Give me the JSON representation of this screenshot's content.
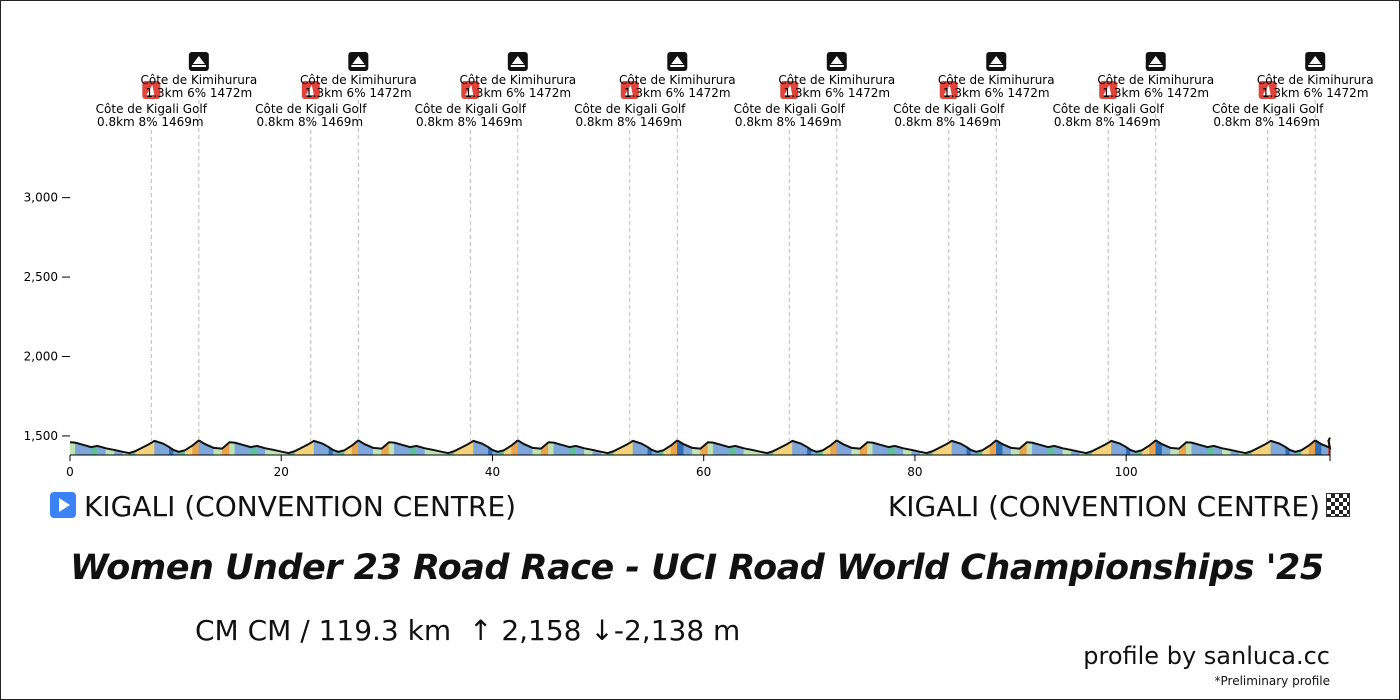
{
  "chart_data": {
    "type": "area",
    "title": "Women Under 23 Road Race - UCI Road World Championships '25",
    "x_ticks": [
      0,
      20,
      40,
      60,
      80,
      100
    ],
    "y_ticks": [
      1500,
      2000,
      2500,
      3000
    ],
    "y_tick_labels": [
      "1,500",
      "2,000",
      "2,500",
      "3,000"
    ],
    "xlim": [
      0,
      119.3
    ],
    "ylim": [
      1380,
      3300
    ],
    "lap_profile": {
      "lap_length_km": 15.1,
      "x": [
        0,
        0.5,
        1.2,
        2.0,
        2.6,
        3.4,
        4.2,
        5.0,
        5.6,
        6.2,
        6.8,
        7.4,
        8.0,
        8.8,
        9.4,
        9.8,
        10.3,
        10.9,
        11.6,
        12.2,
        12.8,
        13.6,
        14.4,
        15.1
      ],
      "y": [
        1460,
        1458,
        1445,
        1430,
        1437,
        1422,
        1412,
        1400,
        1392,
        1405,
        1425,
        1445,
        1469,
        1452,
        1430,
        1412,
        1400,
        1410,
        1440,
        1472,
        1448,
        1425,
        1420,
        1460
      ]
    },
    "finish_elevation": 1490,
    "climbs": [
      {
        "name": "Côte de Kigali Golf",
        "stats": "0.8km 8% 1469m",
        "km": [
          7.7,
          22.8,
          37.9,
          53.0,
          68.1,
          83.2,
          98.3,
          113.4
        ]
      },
      {
        "name": "Côte de Kimihurura",
        "stats": "1.3km 6% 1472m",
        "km": [
          12.2,
          27.3,
          42.4,
          57.5,
          72.6,
          87.7,
          102.8,
          117.9
        ]
      }
    ],
    "gradient_colors": {
      "descent_steep": "#2f6db5",
      "descent": "#7ea6d9",
      "flat": "#bfe3b4",
      "gentle": "#5fbf9a",
      "moderate": "#f2d27a",
      "steep": "#e8a34c",
      "very_steep": "#d9453b"
    }
  },
  "start": {
    "place": "KIGALI (CONVENTION CENTRE)"
  },
  "finish": {
    "place": "KIGALI (CONVENTION CENTRE)"
  },
  "title": "Women Under 23 Road Race - UCI Road World Championships '25",
  "stats": {
    "category": "CM CM",
    "separator": "/",
    "distance": "119.3 km",
    "ascent_arrow": "↑",
    "ascent": "2,158",
    "descent_arrow": "↓",
    "descent": "-2,138 m"
  },
  "credit": "profile by sanluca.cc",
  "note": "*Preliminary profile",
  "icons": {
    "start": "play-icon",
    "finish": "checkered-flag-icon",
    "kom": "mountain-summit-icon",
    "climb_start": "climb-start-icon"
  }
}
